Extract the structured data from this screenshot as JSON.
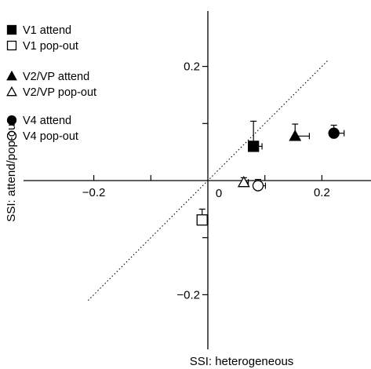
{
  "chart_data": {
    "type": "scatter",
    "xlabel": "SSI: heterogeneous",
    "ylabel": "SSI: attend/pop-out",
    "xlim": [
      -0.3,
      0.3
    ],
    "ylim": [
      -0.3,
      0.3
    ],
    "origin_label": "0",
    "x_ticks": [
      {
        "value": -0.2,
        "label": "−0.2"
      },
      {
        "value": -0.1,
        "label": ""
      },
      {
        "value": 0.1,
        "label": ""
      },
      {
        "value": 0.2,
        "label": "0.2"
      }
    ],
    "y_ticks": [
      {
        "value": 0.2,
        "label": "0.2"
      },
      {
        "value": 0.1,
        "label": ""
      },
      {
        "value": -0.1,
        "label": ""
      },
      {
        "value": -0.2,
        "label": "−0.2"
      }
    ],
    "identity_line": {
      "from": [
        -0.21,
        -0.21
      ],
      "to": [
        0.21,
        0.21
      ],
      "style": "dotted"
    },
    "grid": false,
    "legend_position": "top-left",
    "series": [
      {
        "name": "V1 attend",
        "marker": "square",
        "filled": true,
        "x": 0.08,
        "y": 0.06,
        "x_err": 0.015,
        "y_err": 0.044,
        "y_err_dir": "up"
      },
      {
        "name": "V1 pop-out",
        "marker": "square",
        "filled": false,
        "x": -0.01,
        "y": -0.069,
        "x_err": 0.01,
        "y_err": 0.019,
        "y_err_dir": "up"
      },
      {
        "name": "V2/VP attend",
        "marker": "triangle",
        "filled": true,
        "x": 0.153,
        "y": 0.078,
        "x_err": 0.025,
        "y_err": 0.021,
        "y_err_dir": "up"
      },
      {
        "name": "V2/VP pop-out",
        "marker": "triangle",
        "filled": false,
        "x": 0.063,
        "y": -0.003,
        "x_err": 0.008,
        "y_err": 0.008,
        "y_err_dir": "up"
      },
      {
        "name": "V4 attend",
        "marker": "circle",
        "filled": true,
        "x": 0.221,
        "y": 0.083,
        "x_err": 0.018,
        "y_err": 0.014,
        "y_err_dir": "up"
      },
      {
        "name": "V4 pop-out",
        "marker": "circle",
        "filled": false,
        "x": 0.088,
        "y": -0.009,
        "x_err": 0.013,
        "y_err": 0.011,
        "y_err_dir": "up"
      }
    ]
  }
}
